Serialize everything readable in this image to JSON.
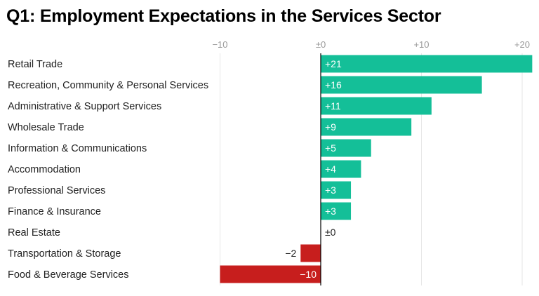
{
  "chart_data": {
    "type": "bar",
    "orientation": "horizontal",
    "title": "Q1: Employment Expectations in the Services Sector",
    "categories": [
      "Retail Trade",
      "Recreation, Community & Personal Services",
      "Administrative & Support Services",
      "Wholesale Trade",
      "Information & Communications",
      "Accommodation",
      "Professional Services",
      "Finance & Insurance",
      "Real Estate",
      "Transportation & Storage",
      "Food & Beverage Services"
    ],
    "values": [
      21,
      16,
      11,
      9,
      5,
      4,
      3,
      3,
      0,
      -2,
      -10
    ],
    "value_labels": [
      "+21",
      "+16",
      "+11",
      "+9",
      "+5",
      "+4",
      "+3",
      "+3",
      "±0",
      "−2",
      "−10"
    ],
    "x_ticks": [
      -10,
      0,
      10,
      20
    ],
    "x_tick_labels": [
      "−10",
      "±0",
      "+10",
      "+20"
    ],
    "xlim": [
      -10,
      21
    ],
    "xlabel": "",
    "ylabel": "",
    "grid": true,
    "colors": {
      "positive": "#14bf98",
      "negative": "#c71e1d",
      "gridline": "#e6e6e6",
      "zero_line": "#000000"
    }
  }
}
